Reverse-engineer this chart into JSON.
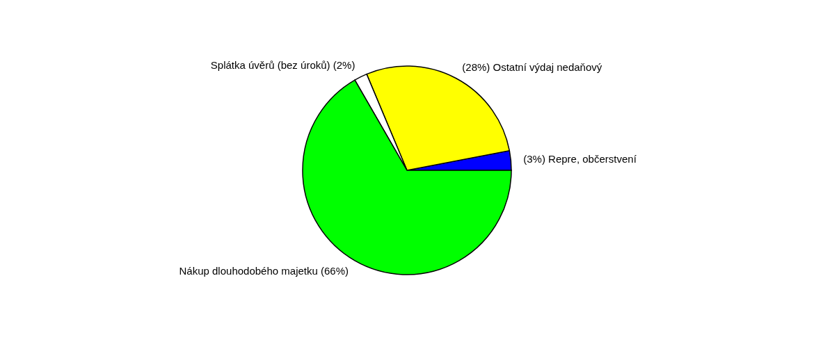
{
  "chart_data": {
    "type": "pie",
    "categories": [
      "Repre, občerstvení",
      "Ostatní výdaj nedaňový",
      "Splátka úvěrů (bez úroků)",
      "Nákup dlouhodobého majetku"
    ],
    "values": [
      3,
      28,
      2,
      66
    ],
    "value_labels": [
      "(3%)",
      "(28%)",
      "(2%)",
      "(66%)"
    ],
    "colors": [
      "#0000ff",
      "#ffff00",
      "#ffffff",
      "#00ff00"
    ],
    "legend": false
  }
}
